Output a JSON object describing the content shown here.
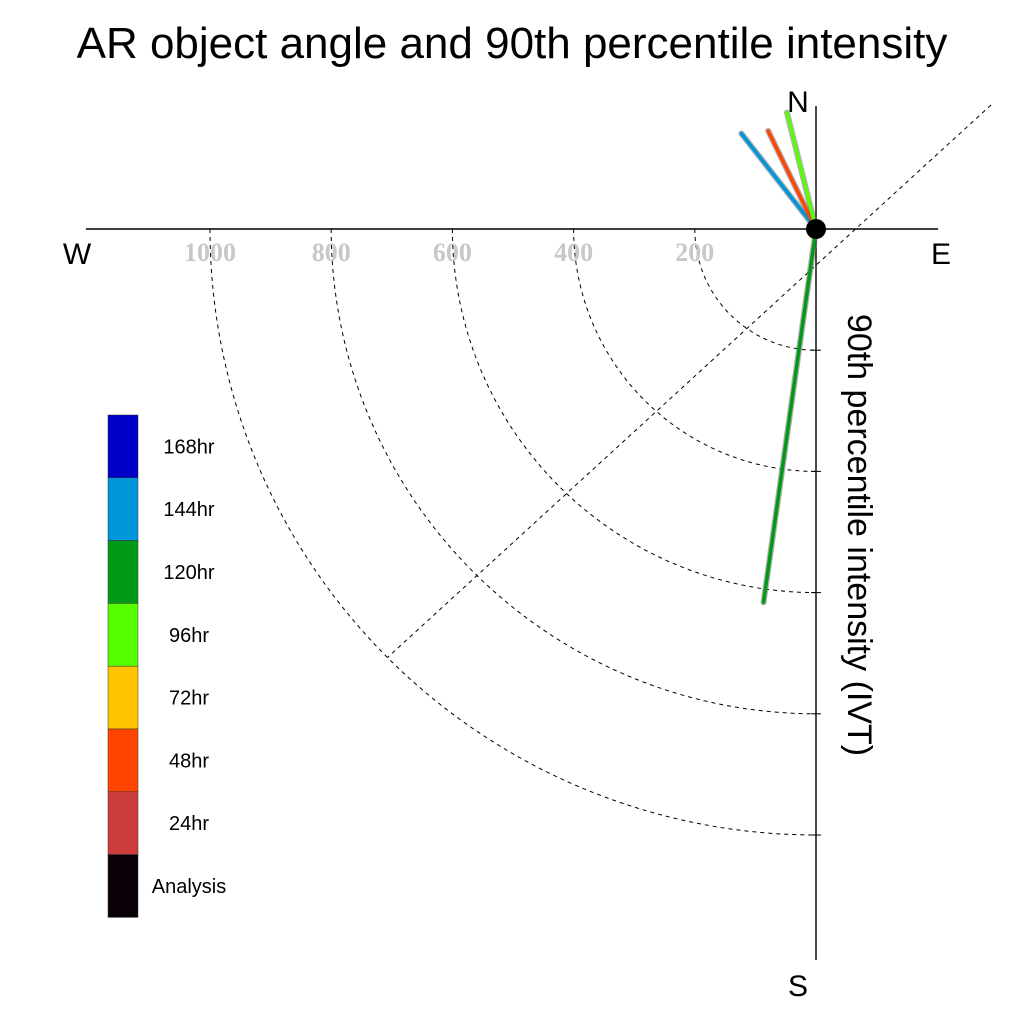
{
  "chart_data": {
    "type": "polar-vector",
    "title": "AR object angle and 90th percentile intensity",
    "radial_label": "90th percentile intensity (IVT)",
    "directions": {
      "north": "N",
      "south": "S",
      "east": "E",
      "west": "W"
    },
    "radial_ticks": [
      200,
      400,
      600,
      800,
      1000
    ],
    "radial_tick_labels": [
      "200",
      "400",
      "600",
      "800",
      "1000"
    ],
    "radial_max": 1000,
    "legend": [
      {
        "label": "168hr",
        "color": "#0000c8"
      },
      {
        "label": "144hr",
        "color": "#0096dc"
      },
      {
        "label": "120hr",
        "color": "#009a17"
      },
      {
        "label": "96hr",
        "color": "#55ff00"
      },
      {
        "label": "72hr",
        "color": "#ffc400"
      },
      {
        "label": "48hr",
        "color": "#ff4500"
      },
      {
        "label": "24hr",
        "color": "#cd3c3c"
      },
      {
        "label": "Analysis",
        "color": "#0a0008"
      }
    ],
    "series": [
      {
        "name": "144hr",
        "color": "#0096dc",
        "bearing_deg": 322,
        "intensity": 200
      },
      {
        "name": "48hr",
        "color": "#ff4500",
        "bearing_deg": 334,
        "intensity": 180
      },
      {
        "name": "96hr",
        "color": "#55ff00",
        "bearing_deg": 346,
        "intensity": 198
      },
      {
        "name": "120hr",
        "color": "#009a17",
        "bearing_deg": 188,
        "intensity": 622
      }
    ]
  }
}
